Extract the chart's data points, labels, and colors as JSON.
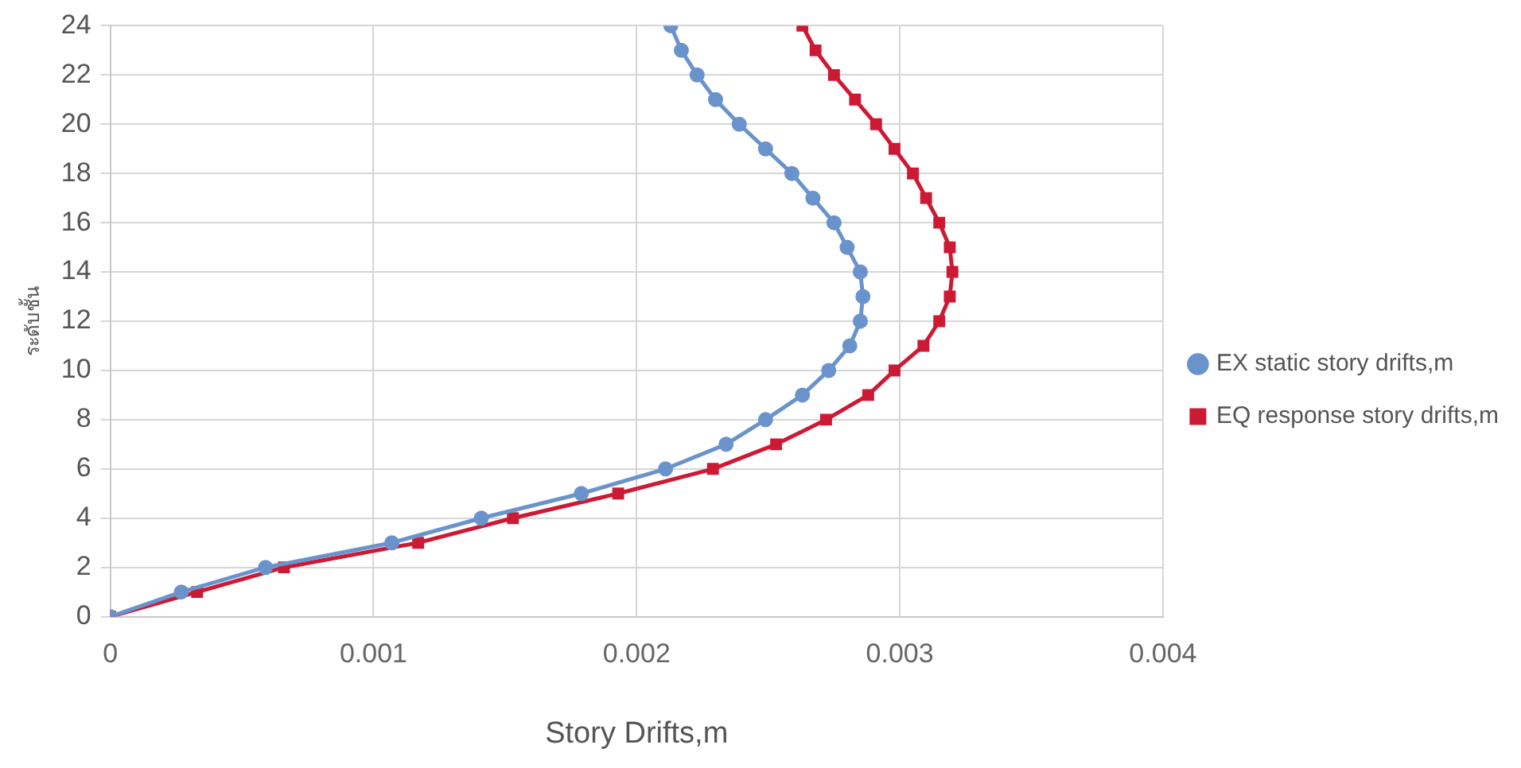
{
  "chart_data": {
    "type": "line",
    "xlabel": "Story Drifts,m",
    "ylabel": "ระดับชั้น",
    "xlim": [
      0,
      0.004
    ],
    "xticks": [
      0,
      0.001,
      0.002,
      0.003,
      0.004
    ],
    "ylim": [
      0,
      24
    ],
    "yticks": [
      0,
      2,
      4,
      6,
      8,
      10,
      12,
      14,
      16,
      18,
      20,
      22,
      24
    ],
    "grid": true,
    "legend": "right",
    "series": [
      {
        "name": "EX static story drifts,m",
        "color": "#6a93cc",
        "marker": "circle",
        "x": [
          0,
          0.00027,
          0.00059,
          0.00107,
          0.00141,
          0.00179,
          0.00211,
          0.00234,
          0.00249,
          0.00263,
          0.00273,
          0.00281,
          0.00285,
          0.00286,
          0.00285,
          0.0028,
          0.00275,
          0.00267,
          0.00259,
          0.00249,
          0.00239,
          0.0023,
          0.00223,
          0.00217,
          0.00213
        ],
        "values": [
          0,
          1,
          2,
          3,
          4,
          5,
          6,
          7,
          8,
          9,
          10,
          11,
          12,
          13,
          14,
          15,
          16,
          17,
          18,
          19,
          20,
          21,
          22,
          23,
          24
        ]
      },
      {
        "name": "EQ response story drifts,m",
        "color": "#cc1a35",
        "marker": "square",
        "x": [
          0,
          0.00033,
          0.00066,
          0.00117,
          0.00153,
          0.00193,
          0.00229,
          0.00253,
          0.00272,
          0.00288,
          0.00298,
          0.00309,
          0.00315,
          0.00319,
          0.0032,
          0.00319,
          0.00315,
          0.0031,
          0.00305,
          0.00298,
          0.00291,
          0.00283,
          0.00275,
          0.00268,
          0.00263
        ],
        "values": [
          0,
          1,
          2,
          3,
          4,
          5,
          6,
          7,
          8,
          9,
          10,
          11,
          12,
          13,
          14,
          15,
          16,
          17,
          18,
          19,
          20,
          21,
          22,
          23,
          24
        ]
      }
    ]
  }
}
